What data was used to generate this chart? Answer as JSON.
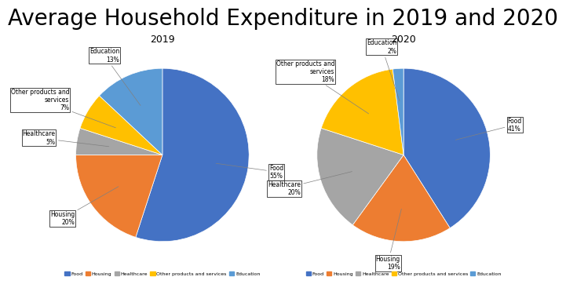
{
  "title": "Average Household Expenditure in 2019 and 2020",
  "title_fontsize": 20,
  "charts": [
    {
      "year": "2019",
      "values": [
        55,
        20,
        5,
        7,
        13
      ],
      "labels": [
        "Food",
        "Housing",
        "Healthcare",
        "Other products and\nservices",
        "Education"
      ],
      "autopct_labels": [
        "Food\n55%",
        "Housing\n20%",
        "Healthcare\n5%",
        "Other products and\nservices\n7%",
        "Education\n13%"
      ]
    },
    {
      "year": "2020",
      "values": [
        41,
        19,
        20,
        18,
        2
      ],
      "labels": [
        "Food",
        "Housing",
        "Healthcare",
        "Other products and\nservices",
        "Education"
      ],
      "autopct_labels": [
        "Food\n41%",
        "Housing\n19%",
        "Healthcare\n20%",
        "Other products and\nservices\n18%",
        "Education\n2%"
      ]
    }
  ],
  "colors": [
    "#4472C4",
    "#ED7D31",
    "#A5A5A5",
    "#FFC000",
    "#5B9BD5"
  ],
  "legend_labels": [
    "Food",
    "Housing",
    "Healthcare",
    "Other products and services",
    "Education"
  ],
  "background_color": "#FFFFFF"
}
